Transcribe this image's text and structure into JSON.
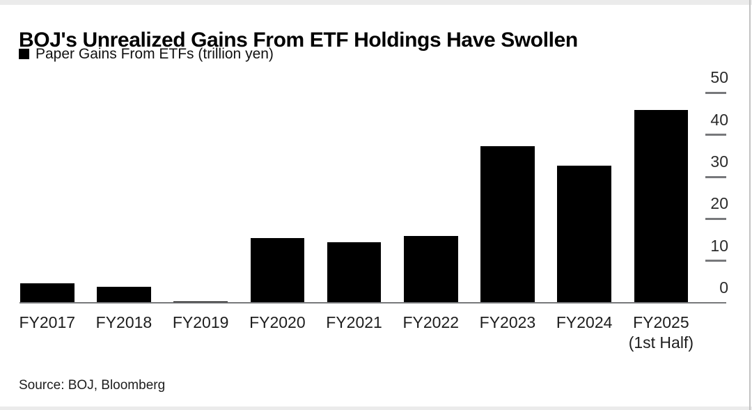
{
  "header": {
    "title": "BOJ's Unrealized Gains From ETF Holdings Have Swollen",
    "legend": {
      "swatch_color": "#000000",
      "label": "Paper Gains From ETFs (trillion yen)"
    }
  },
  "footer": {
    "source": "Source: BOJ, Bloomberg"
  },
  "chart_data": {
    "type": "bar",
    "title": "BOJ's Unrealized Gains From ETF Holdings Have Swollen",
    "series_name": "Paper Gains From ETFs",
    "unit": "trillion yen",
    "categories": [
      "FY2017",
      "FY2018",
      "FY2019",
      "FY2020",
      "FY2021",
      "FY2022",
      "FY2023",
      "FY2024",
      "FY2025"
    ],
    "category_notes": {
      "FY2025": "(1st Half)"
    },
    "values": [
      4.7,
      3.8,
      0.3,
      15.4,
      14.4,
      15.9,
      37.3,
      32.7,
      45.9
    ],
    "ylim": [
      0,
      50
    ],
    "yticks": [
      0,
      10,
      20,
      30,
      40,
      50
    ],
    "ytick_side": "right",
    "xlabel": "",
    "ylabel": "",
    "grid": false,
    "legend_position": "top-left",
    "bar_color": "#000000",
    "axis_color": "#77787b",
    "background_color": "#ffffff"
  }
}
